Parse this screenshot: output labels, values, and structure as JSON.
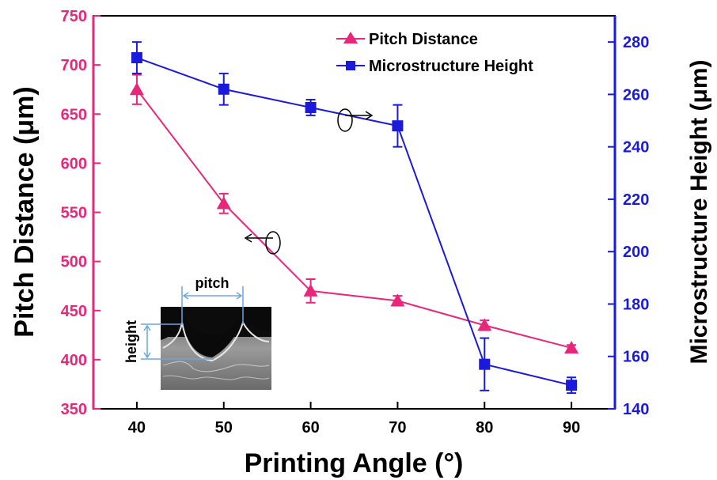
{
  "chart_data": {
    "type": "line",
    "xlabel": "Printing Angle (°)",
    "ylabel_left": "Pitch Distance (μm)",
    "ylabel_right": "Microstructure Height (μm)",
    "x": [
      40,
      50,
      60,
      70,
      80,
      90
    ],
    "xlim": [
      35,
      95
    ],
    "x_ticks": [
      "40",
      "50",
      "60",
      "70",
      "80",
      "90"
    ],
    "ylim_left": [
      350,
      750
    ],
    "y_ticks_left": [
      "350",
      "400",
      "450",
      "500",
      "550",
      "600",
      "650",
      "700",
      "750"
    ],
    "ylim_right": [
      140,
      290
    ],
    "y_ticks_right": [
      "140",
      "160",
      "180",
      "200",
      "220",
      "240",
      "260",
      "280"
    ],
    "grid": false,
    "legend_position": "top-right",
    "series": [
      {
        "name": "Pitch Distance",
        "axis": "left",
        "marker": "triangle",
        "color": "#e8267a",
        "values": [
          675,
          559,
          470,
          460,
          435,
          412
        ],
        "error": [
          15,
          10,
          12,
          5,
          5,
          3
        ]
      },
      {
        "name": "Microstructure Height",
        "axis": "right",
        "marker": "square",
        "color": "#1a1adb",
        "values": [
          274,
          262,
          255,
          248,
          157,
          149
        ],
        "error": [
          6,
          6,
          3,
          8,
          10,
          3
        ]
      }
    ],
    "inset": {
      "pitch_label": "pitch",
      "height_label": "height"
    }
  },
  "colors": {
    "left_axis": "#e8267a",
    "right_axis": "#1a1adb",
    "frame": "#000000"
  }
}
